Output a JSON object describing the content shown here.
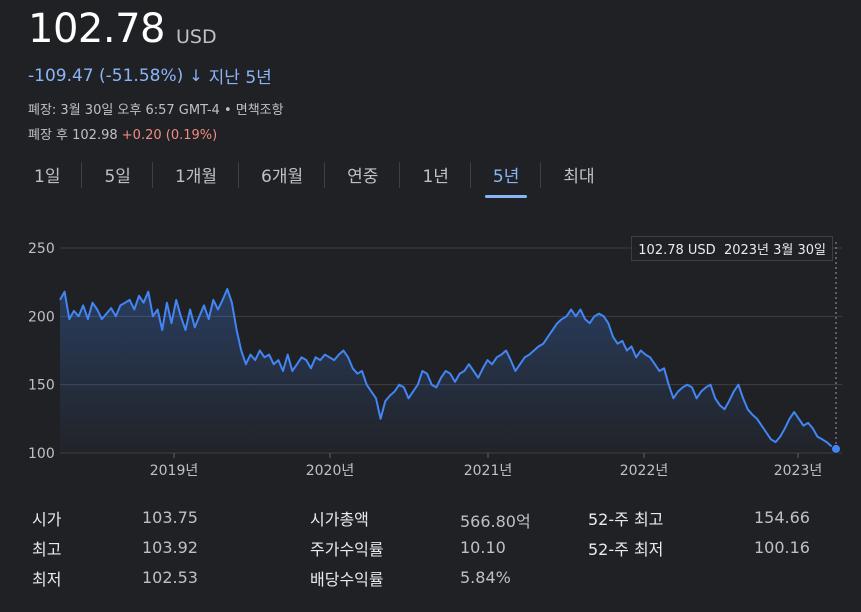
{
  "header": {
    "price": "102.78",
    "currency": "USD",
    "change": "-109.47 (-51.58%)",
    "change_arrow": "↓",
    "period": "지난 5년",
    "close_info": "폐장: 3월 30일 오후 6:57 GMT-4 • 면책조항",
    "after_hours_label": "폐장 후 102.98",
    "after_hours_change": "+0.20 (0.19%)"
  },
  "tabs": [
    "1일",
    "5일",
    "1개월",
    "6개월",
    "연중",
    "1년",
    "5년",
    "최대"
  ],
  "active_tab": "5년",
  "tooltip": {
    "price": "102.78 USD",
    "date": "2023년 3월 30일"
  },
  "colors": {
    "line": "#4285f4",
    "accent": "#8ab4f8",
    "positive": "#f28b82"
  },
  "chart_data": {
    "type": "area",
    "ylim": [
      100,
      250
    ],
    "y_ticks": [
      "250",
      "200",
      "150",
      "100"
    ],
    "x_ticks": [
      "2019년",
      "2020년",
      "2021년",
      "2022년",
      "2023년"
    ],
    "series": [
      {
        "values": [
          212,
          218,
          198,
          204,
          200,
          208,
          198,
          210,
          205,
          198,
          202,
          206,
          200,
          208,
          210,
          212,
          205,
          215,
          210,
          218,
          200,
          205,
          190,
          210,
          195,
          212,
          200,
          190,
          205,
          192,
          200,
          208,
          198,
          212,
          205,
          212,
          220,
          210,
          190,
          175,
          165,
          172,
          168,
          175,
          170,
          172,
          165,
          168,
          160,
          172,
          160,
          165,
          170,
          168,
          162,
          170,
          168,
          172,
          170,
          168,
          172,
          175,
          170,
          162,
          158,
          160,
          150,
          145,
          140,
          125,
          138,
          142,
          145,
          150,
          148,
          140,
          145,
          150,
          160,
          158,
          150,
          148,
          155,
          160,
          158,
          152,
          158,
          160,
          165,
          160,
          155,
          162,
          168,
          165,
          170,
          172,
          175,
          168,
          160,
          165,
          170,
          172,
          175,
          178,
          180,
          185,
          190,
          195,
          198,
          200,
          205,
          200,
          205,
          198,
          195,
          200,
          202,
          200,
          195,
          185,
          180,
          182,
          175,
          178,
          170,
          175,
          172,
          170,
          165,
          160,
          162,
          150,
          140,
          145,
          148,
          150,
          148,
          140,
          145,
          148,
          150,
          140,
          135,
          132,
          138,
          145,
          150,
          140,
          132,
          128,
          125,
          120,
          115,
          110,
          108,
          112,
          118,
          125,
          130,
          125,
          120,
          122,
          118,
          112,
          110,
          108,
          105,
          103
        ]
      }
    ]
  },
  "stats": {
    "col1": [
      {
        "label": "시가",
        "value": "103.75"
      },
      {
        "label": "최고",
        "value": "103.92"
      },
      {
        "label": "최저",
        "value": "102.53"
      }
    ],
    "col2": [
      {
        "label": "시가총액",
        "value": "566.80억"
      },
      {
        "label": "주가수익률",
        "value": "10.10"
      },
      {
        "label": "배당수익률",
        "value": "5.84%"
      }
    ],
    "col3": [
      {
        "label": "52-주 최고",
        "value": "154.66"
      },
      {
        "label": "52-주 최저",
        "value": "100.16"
      }
    ]
  }
}
